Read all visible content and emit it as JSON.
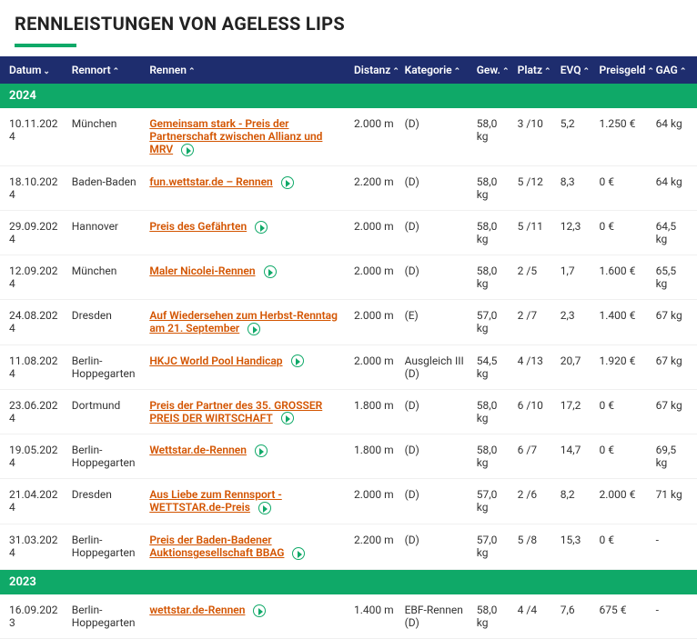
{
  "title": "RENNLEISTUNGEN VON AGELESS LIPS",
  "colors": {
    "header_bg": "#1e2d6e",
    "accent": "#0fa968",
    "link": "#d35400"
  },
  "columns": {
    "datum": "Datum",
    "rennort": "Rennort",
    "rennen": "Rennen",
    "distanz": "Distanz",
    "kategorie": "Kategorie",
    "gew": "Gew.",
    "platz": "Platz",
    "evq": "EVQ",
    "preisgeld": "Preisgeld",
    "gag": "GAG"
  },
  "years": [
    {
      "label": "2024",
      "rows": [
        {
          "datum": "10.11.2024",
          "rennort": "München",
          "rennen": "Gemeinsam stark - Preis der Partnerschaft zwischen Allianz und MRV",
          "distanz": "2.000 m",
          "kategorie": "(D)",
          "gew": "58,0 kg",
          "platz": "3 /10",
          "evq": "5,2",
          "preisgeld": "1.250 €",
          "gag": "64 kg"
        },
        {
          "datum": "18.10.2024",
          "rennort": "Baden-Baden",
          "rennen": "fun.wettstar.de – Rennen",
          "distanz": "2.200 m",
          "kategorie": "(D)",
          "gew": "58,0 kg",
          "platz": "5 /12",
          "evq": "8,3",
          "preisgeld": "0 €",
          "gag": "64 kg"
        },
        {
          "datum": "29.09.2024",
          "rennort": "Hannover",
          "rennen": "Preis des Gefährten",
          "distanz": "2.000 m",
          "kategorie": "(D)",
          "gew": "58,0 kg",
          "platz": "5 /11",
          "evq": "12,3",
          "preisgeld": "0 €",
          "gag": "64,5 kg"
        },
        {
          "datum": "12.09.2024",
          "rennort": "München",
          "rennen": "Maler Nicolei-Rennen",
          "distanz": "2.000 m",
          "kategorie": "(D)",
          "gew": "58,0 kg",
          "platz": "2 /5",
          "evq": "1,7",
          "preisgeld": "1.600 €",
          "gag": "65,5 kg"
        },
        {
          "datum": "24.08.2024",
          "rennort": "Dresden",
          "rennen": "Auf Wiedersehen zum Herbst-Renntag am 21. September",
          "distanz": "2.000 m",
          "kategorie": "(E)",
          "gew": "57,0 kg",
          "platz": "2 /7",
          "evq": "2,3",
          "preisgeld": "1.400 €",
          "gag": "67 kg"
        },
        {
          "datum": "11.08.2024",
          "rennort": "Berlin-Hoppegarten",
          "rennen": "HKJC World Pool Handicap",
          "distanz": "2.000 m",
          "kategorie": "Ausgleich III (D)",
          "gew": "54,5 kg",
          "platz": "4 /13",
          "evq": "20,7",
          "preisgeld": "1.920 €",
          "gag": "67 kg"
        },
        {
          "datum": "23.06.2024",
          "rennort": "Dortmund",
          "rennen": "Preis der Partner des 35. GROSSER PREIS DER WIRTSCHAFT",
          "distanz": "1.800 m",
          "kategorie": "(D)",
          "gew": "58,0 kg",
          "platz": "6 /10",
          "evq": "17,2",
          "preisgeld": "0 €",
          "gag": "67 kg"
        },
        {
          "datum": "19.05.2024",
          "rennort": "Berlin-Hoppegarten",
          "rennen": "Wettstar.de-Rennen",
          "distanz": "1.800 m",
          "kategorie": "(D)",
          "gew": "58,0 kg",
          "platz": "6 /7",
          "evq": "14,7",
          "preisgeld": "0 €",
          "gag": "69,5 kg"
        },
        {
          "datum": "21.04.2024",
          "rennort": "Dresden",
          "rennen": "Aus Liebe zum Rennsport - WETTSTAR.de-Preis",
          "distanz": "2.000 m",
          "kategorie": "(D)",
          "gew": "57,0 kg",
          "platz": "2 /6",
          "evq": "8,2",
          "preisgeld": "2.000 €",
          "gag": "71 kg"
        },
        {
          "datum": "31.03.2024",
          "rennort": "Berlin-Hoppegarten",
          "rennen": "Preis der Baden-Badener Auktionsgesellschaft BBAG",
          "distanz": "2.200 m",
          "kategorie": "(D)",
          "gew": "57,0 kg",
          "platz": "5 /8",
          "evq": "15,3",
          "preisgeld": "0 €",
          "gag": "-"
        }
      ]
    },
    {
      "label": "2023",
      "rows": [
        {
          "datum": "16.09.2023",
          "rennort": "Berlin-Hoppegarten",
          "rennen": "wettstar.de-Rennen",
          "distanz": "1.400 m",
          "kategorie": "EBF-Rennen (D)",
          "gew": "58,0 kg",
          "platz": "4 /4",
          "evq": "7,6",
          "preisgeld": "675 €",
          "gag": "-"
        }
      ]
    }
  ]
}
